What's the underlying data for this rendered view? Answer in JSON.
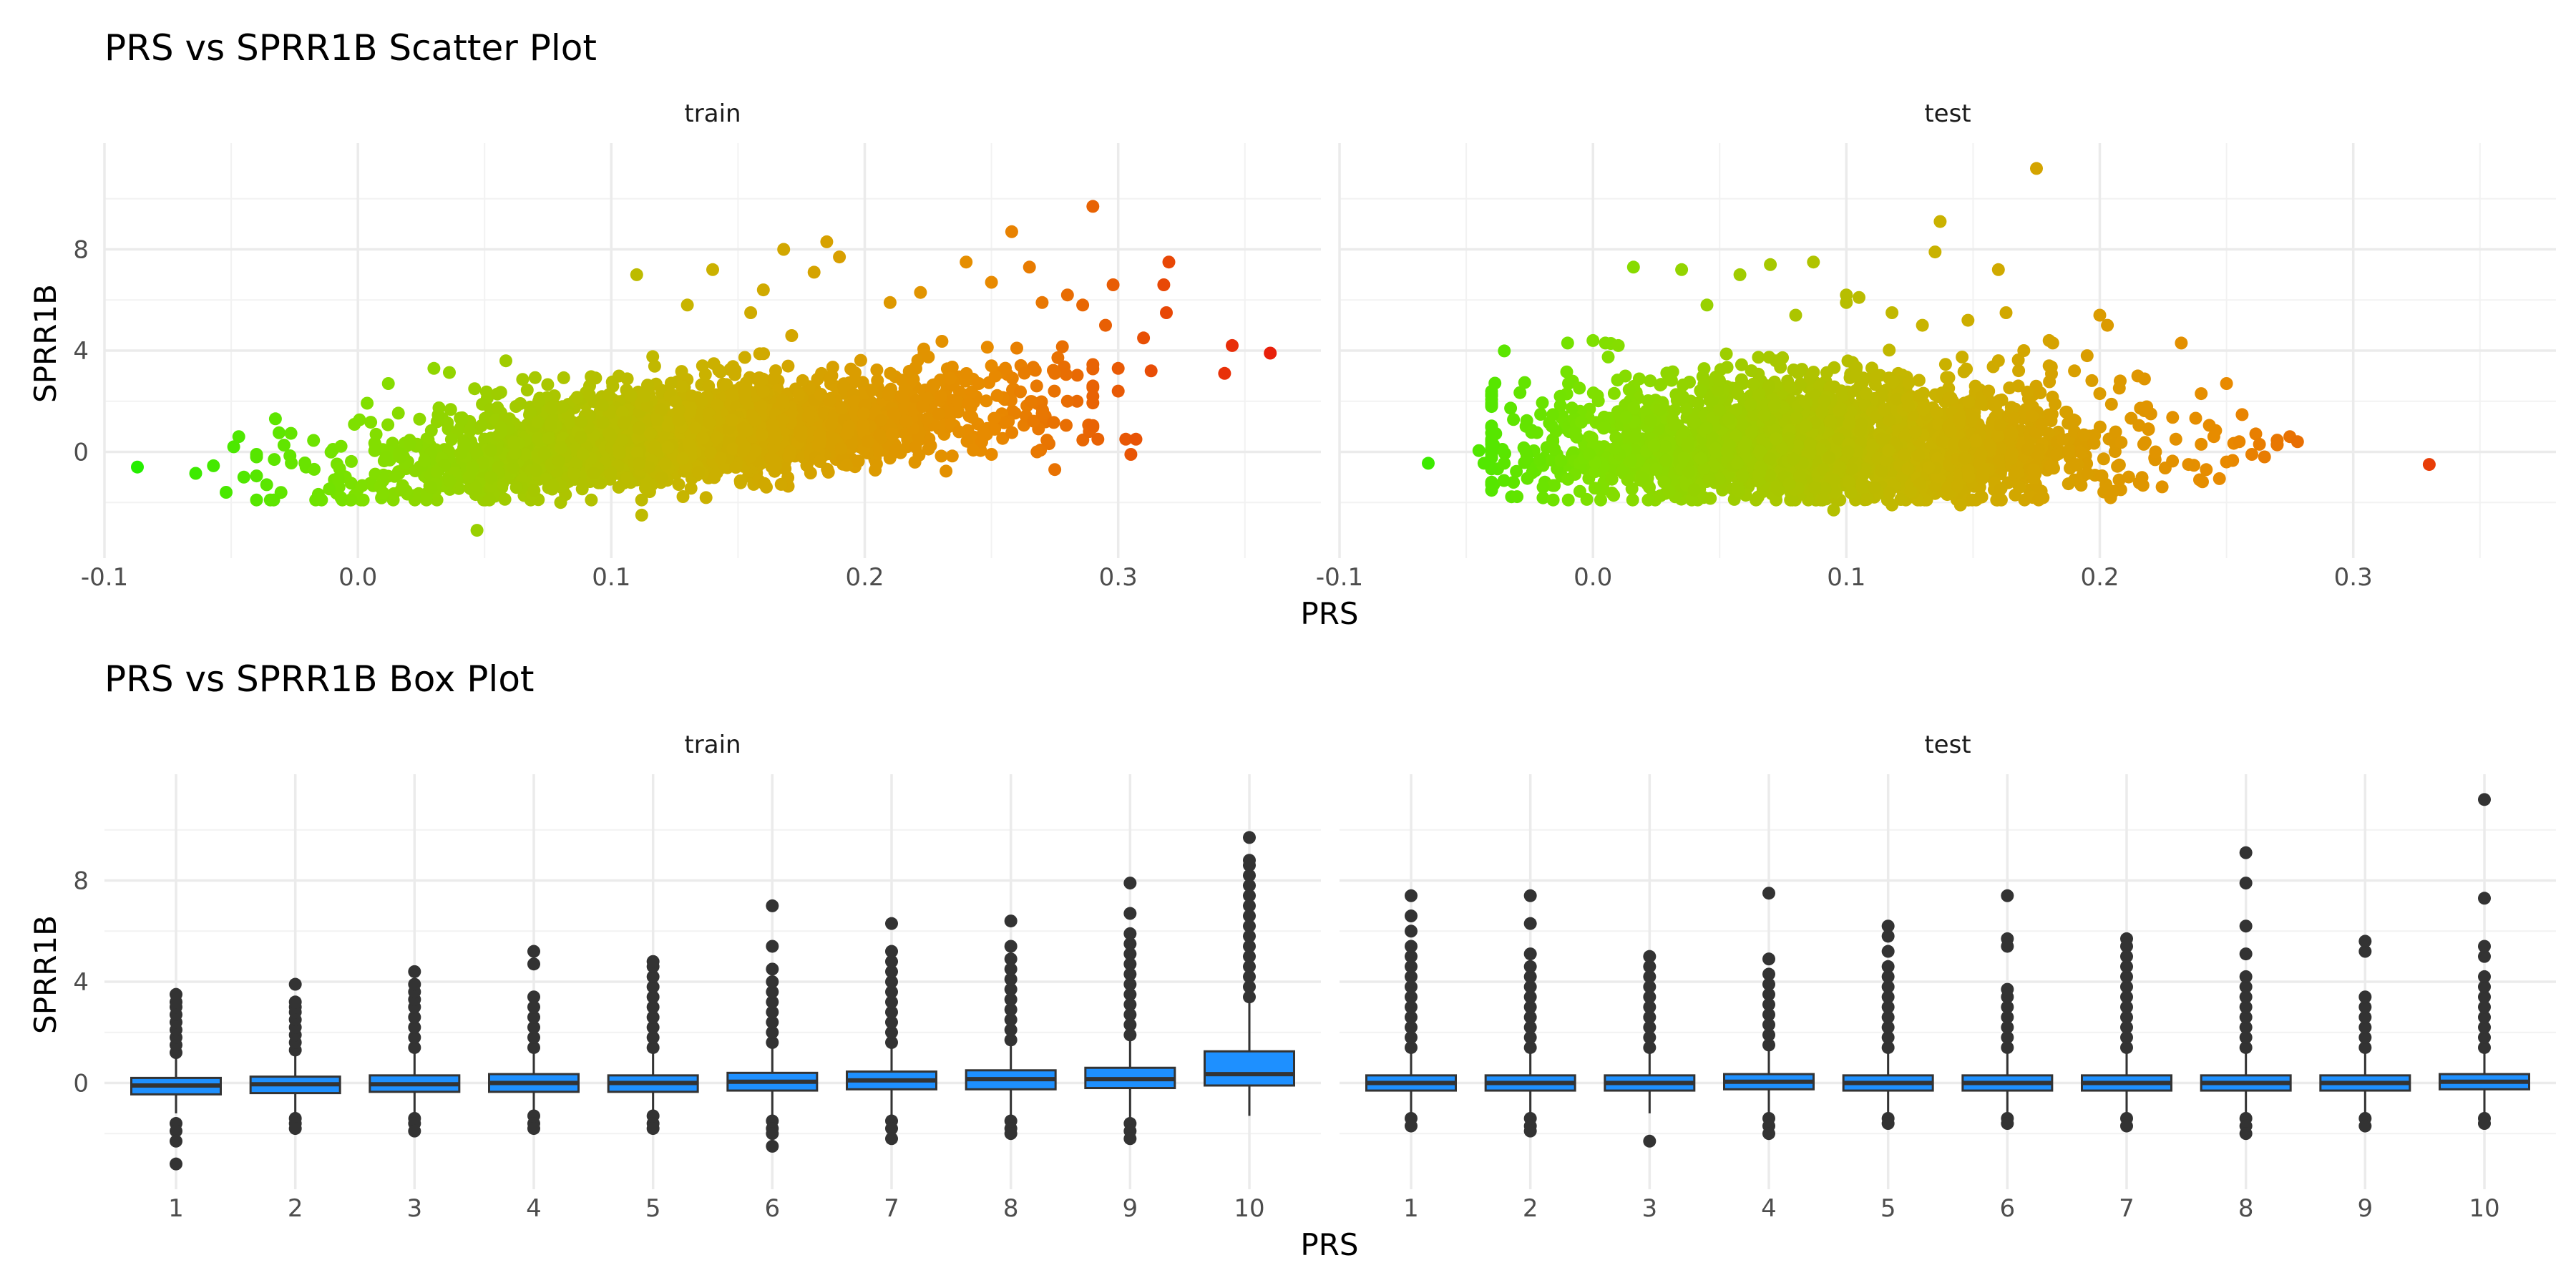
{
  "chart_data": [
    {
      "type": "scatter",
      "title": "PRS vs SPRR1B Scatter Plot",
      "xlabel": "PRS",
      "ylabel": "SPRR1B",
      "x_ticks": [
        -0.1,
        0.0,
        0.1,
        0.2,
        0.3
      ],
      "x_tick_labels": [
        "-0.1",
        "0.0",
        "0.1",
        "0.2",
        "0.3"
      ],
      "y_ticks": [
        0,
        4,
        8
      ],
      "y_tick_labels": [
        "0",
        "4",
        "8"
      ],
      "xlim": [
        -0.1,
        0.38
      ],
      "ylim": [
        -4.2,
        12.2
      ],
      "grid": true,
      "color_mapping": "PRS (green to red)",
      "colors": {
        "low": "#22ee00",
        "mid_low": "#7fe000",
        "mid": "#c8b400",
        "mid_high": "#e88a00",
        "high": "#e8200a"
      },
      "panels": [
        {
          "name": "train",
          "point_cloud": {
            "n": 2600,
            "x_mean": 0.13,
            "x_sd": 0.06,
            "slope": 10,
            "intercept": -0.9,
            "noise_sd": 0.75
          },
          "points": [
            [
              -0.087,
              -0.6
            ],
            [
              -0.064,
              -0.85
            ],
            [
              -0.057,
              -0.55
            ],
            [
              -0.052,
              -1.6
            ],
            [
              -0.049,
              0.2
            ],
            [
              -0.047,
              0.6
            ],
            [
              -0.045,
              -1.0
            ],
            [
              -0.04,
              -0.2
            ],
            [
              -0.036,
              -1.3
            ],
            [
              -0.033,
              -0.3
            ],
            [
              0.012,
              2.7
            ],
            [
              0.03,
              3.3
            ],
            [
              0.047,
              -3.1
            ],
            [
              0.08,
              -2.0
            ],
            [
              0.11,
              7.0
            ],
            [
              0.112,
              -2.5
            ],
            [
              0.13,
              5.8
            ],
            [
              0.14,
              7.2
            ],
            [
              0.155,
              5.5
            ],
            [
              0.16,
              6.4
            ],
            [
              0.168,
              8.0
            ],
            [
              0.18,
              7.1
            ],
            [
              0.185,
              8.3
            ],
            [
              0.19,
              7.7
            ],
            [
              0.21,
              5.9
            ],
            [
              0.222,
              6.3
            ],
            [
              0.24,
              7.5
            ],
            [
              0.25,
              6.7
            ],
            [
              0.258,
              8.7
            ],
            [
              0.265,
              7.3
            ],
            [
              0.27,
              5.9
            ],
            [
              0.275,
              3.1
            ],
            [
              0.28,
              6.2
            ],
            [
              0.286,
              5.8
            ],
            [
              0.29,
              9.7
            ],
            [
              0.292,
              0.5
            ],
            [
              0.295,
              5.0
            ],
            [
              0.298,
              6.6
            ],
            [
              0.3,
              3.3
            ],
            [
              0.3,
              2.4
            ],
            [
              0.303,
              0.5
            ],
            [
              0.305,
              -0.1
            ],
            [
              0.307,
              0.5
            ],
            [
              0.31,
              4.5
            ],
            [
              0.313,
              3.2
            ],
            [
              0.318,
              6.6
            ],
            [
              0.319,
              5.5
            ],
            [
              0.32,
              7.5
            ],
            [
              0.342,
              3.1
            ],
            [
              0.345,
              4.2
            ],
            [
              0.36,
              3.9
            ],
            [
              0.25,
              3.4
            ],
            [
              0.26,
              4.1
            ],
            [
              0.245,
              2.7
            ],
            [
              0.23,
              2.2
            ],
            [
              0.27,
              1.5
            ],
            [
              0.28,
              2.0
            ],
            [
              0.268,
              0.0
            ],
            [
              0.25,
              -0.1
            ],
            [
              0.275,
              -0.7
            ]
          ]
        },
        {
          "name": "test",
          "point_cloud": {
            "n": 2600,
            "x_mean": 0.09,
            "x_sd": 0.055,
            "slope": 0,
            "intercept": 0.1,
            "noise_sd": 0.95
          },
          "points": [
            [
              -0.065,
              -0.45
            ],
            [
              -0.045,
              0.05
            ],
            [
              -0.043,
              -0.45
            ],
            [
              -0.035,
              -0.45
            ],
            [
              -0.01,
              4.3
            ],
            [
              0.0,
              4.4
            ],
            [
              0.01,
              4.2
            ],
            [
              0.016,
              7.3
            ],
            [
              0.035,
              7.2
            ],
            [
              0.045,
              5.8
            ],
            [
              0.058,
              7.0
            ],
            [
              0.07,
              7.4
            ],
            [
              0.08,
              5.4
            ],
            [
              0.087,
              7.5
            ],
            [
              0.1,
              5.9
            ],
            [
              0.1,
              6.2
            ],
            [
              0.105,
              6.1
            ],
            [
              0.118,
              5.5
            ],
            [
              0.13,
              5.0
            ],
            [
              0.135,
              7.9
            ],
            [
              0.137,
              9.1
            ],
            [
              0.148,
              5.2
            ],
            [
              0.16,
              7.2
            ],
            [
              0.163,
              5.5
            ],
            [
              0.17,
              4.0
            ],
            [
              0.175,
              11.2
            ],
            [
              0.18,
              4.4
            ],
            [
              0.19,
              3.2
            ],
            [
              0.195,
              3.8
            ],
            [
              0.2,
              2.3
            ],
            [
              0.215,
              3.0
            ],
            [
              0.2,
              5.4
            ],
            [
              0.203,
              5.0
            ],
            [
              0.16,
              3.6
            ],
            [
              0.18,
              3.4
            ],
            [
              0.095,
              -2.3
            ],
            [
              0.118,
              -2.1
            ],
            [
              0.145,
              -2.1
            ],
            [
              0.04,
              -1.5
            ],
            [
              0.24,
              2.3
            ],
            [
              0.25,
              2.7
            ],
            [
              0.24,
              0.3
            ],
            [
              0.245,
              0.6
            ],
            [
              0.255,
              0.4
            ],
            [
              0.26,
              -0.1
            ],
            [
              0.263,
              0.3
            ],
            [
              0.27,
              0.3
            ],
            [
              0.275,
              0.6
            ],
            [
              0.278,
              0.4
            ],
            [
              0.265,
              -0.2
            ],
            [
              0.33,
              -0.5
            ],
            [
              0.235,
              -0.5
            ],
            [
              0.25,
              -0.4
            ],
            [
              0.222,
              0.0
            ],
            [
              0.23,
              0.5
            ]
          ]
        }
      ]
    },
    {
      "type": "box",
      "title": "PRS vs SPRR1B Box Plot",
      "xlabel": "PRS",
      "ylabel": "SPRR1B",
      "categories": [
        "1",
        "2",
        "3",
        "4",
        "5",
        "6",
        "7",
        "8",
        "9",
        "10"
      ],
      "y_ticks": [
        0,
        4,
        8
      ],
      "y_tick_labels": [
        "0",
        "4",
        "8"
      ],
      "ylim": [
        -4.2,
        12.2
      ],
      "grid": true,
      "colors": {
        "box_fill": "#1e90ff",
        "box_line": "#333333"
      },
      "panels": [
        {
          "name": "train",
          "boxes": [
            {
              "q1": -0.45,
              "median": -0.1,
              "q3": 0.2,
              "lower": -1.2,
              "upper": 1.0,
              "outliers": [
                -1.6,
                -1.9,
                -2.3,
                -3.2,
                1.2,
                1.5,
                1.8,
                2.1,
                2.4,
                2.7,
                3.0,
                3.2,
                3.5
              ]
            },
            {
              "q1": -0.4,
              "median": -0.05,
              "q3": 0.25,
              "lower": -1.2,
              "upper": 1.1,
              "outliers": [
                -1.4,
                -1.6,
                -1.8,
                1.3,
                1.6,
                1.9,
                2.2,
                2.5,
                2.8,
                3.0,
                3.2,
                3.9
              ]
            },
            {
              "q1": -0.35,
              "median": -0.05,
              "q3": 0.3,
              "lower": -1.2,
              "upper": 1.2,
              "outliers": [
                -1.4,
                -1.6,
                -1.9,
                1.4,
                1.8,
                2.2,
                2.6,
                3.0,
                3.3,
                3.6,
                3.9,
                4.4
              ]
            },
            {
              "q1": -0.35,
              "median": 0.0,
              "q3": 0.35,
              "lower": -1.2,
              "upper": 1.2,
              "outliers": [
                -1.3,
                -1.6,
                -1.8,
                1.4,
                1.8,
                2.2,
                2.6,
                3.0,
                3.4,
                4.7,
                5.2
              ]
            },
            {
              "q1": -0.35,
              "median": 0.0,
              "q3": 0.3,
              "lower": -1.2,
              "upper": 1.2,
              "outliers": [
                -1.3,
                -1.6,
                -1.8,
                1.4,
                1.8,
                2.2,
                2.6,
                3.0,
                3.4,
                3.8,
                4.2,
                4.6,
                4.8
              ]
            },
            {
              "q1": -0.3,
              "median": 0.05,
              "q3": 0.4,
              "lower": -1.3,
              "upper": 1.4,
              "outliers": [
                -1.5,
                -1.8,
                -2.0,
                -2.5,
                1.6,
                2.0,
                2.4,
                2.8,
                3.2,
                3.6,
                4.0,
                4.5,
                5.4,
                7.0
              ]
            },
            {
              "q1": -0.25,
              "median": 0.1,
              "q3": 0.45,
              "lower": -1.3,
              "upper": 1.4,
              "outliers": [
                -1.5,
                -1.8,
                -2.2,
                1.6,
                2.0,
                2.4,
                2.8,
                3.2,
                3.6,
                4.0,
                4.4,
                4.8,
                5.2,
                6.3
              ]
            },
            {
              "q1": -0.25,
              "median": 0.15,
              "q3": 0.5,
              "lower": -1.3,
              "upper": 1.5,
              "outliers": [
                -1.5,
                -1.8,
                -2.0,
                1.7,
                2.1,
                2.5,
                2.9,
                3.3,
                3.7,
                4.1,
                4.5,
                4.9,
                5.4,
                6.4
              ]
            },
            {
              "q1": -0.2,
              "median": 0.15,
              "q3": 0.6,
              "lower": -1.4,
              "upper": 1.7,
              "outliers": [
                -1.6,
                -1.9,
                -2.2,
                1.9,
                2.3,
                2.7,
                3.1,
                3.5,
                3.9,
                4.3,
                4.7,
                5.1,
                5.5,
                5.9,
                6.7,
                7.9
              ]
            },
            {
              "q1": -0.1,
              "median": 0.35,
              "q3": 1.25,
              "lower": -1.3,
              "upper": 3.2,
              "outliers": [
                3.4,
                3.8,
                4.2,
                4.6,
                5.0,
                5.4,
                5.8,
                6.2,
                6.6,
                7.0,
                7.4,
                7.8,
                8.2,
                8.6,
                8.8,
                9.7
              ]
            }
          ]
        },
        {
          "name": "test",
          "boxes": [
            {
              "q1": -0.3,
              "median": 0.0,
              "q3": 0.3,
              "lower": -1.2,
              "upper": 1.2,
              "outliers": [
                -1.4,
                -1.7,
                1.4,
                1.8,
                2.2,
                2.6,
                3.0,
                3.4,
                3.8,
                4.2,
                4.6,
                5.0,
                5.4,
                6.0,
                6.6,
                7.4
              ]
            },
            {
              "q1": -0.3,
              "median": 0.0,
              "q3": 0.3,
              "lower": -1.2,
              "upper": 1.2,
              "outliers": [
                -1.4,
                -1.7,
                -1.9,
                1.4,
                1.8,
                2.2,
                2.6,
                3.0,
                3.4,
                3.8,
                4.2,
                4.6,
                5.1,
                6.3,
                7.4
              ]
            },
            {
              "q1": -0.3,
              "median": 0.0,
              "q3": 0.3,
              "lower": -1.2,
              "upper": 1.2,
              "outliers": [
                -2.3,
                1.4,
                1.8,
                2.2,
                2.6,
                3.0,
                3.4,
                3.8,
                4.2,
                4.6,
                5.0
              ]
            },
            {
              "q1": -0.25,
              "median": 0.05,
              "q3": 0.35,
              "lower": -1.2,
              "upper": 1.3,
              "outliers": [
                -1.4,
                -1.7,
                -2.0,
                1.5,
                1.9,
                2.3,
                2.7,
                3.1,
                3.5,
                3.9,
                4.3,
                4.9,
                7.5
              ]
            },
            {
              "q1": -0.3,
              "median": 0.0,
              "q3": 0.3,
              "lower": -1.2,
              "upper": 1.2,
              "outliers": [
                -1.4,
                -1.6,
                1.4,
                1.8,
                2.2,
                2.6,
                3.0,
                3.4,
                3.8,
                4.2,
                4.6,
                5.2,
                5.8,
                6.2
              ]
            },
            {
              "q1": -0.3,
              "median": 0.0,
              "q3": 0.3,
              "lower": -1.2,
              "upper": 1.2,
              "outliers": [
                -1.4,
                -1.6,
                1.4,
                1.8,
                2.2,
                2.6,
                3.0,
                3.4,
                3.7,
                5.4,
                5.7,
                7.4
              ]
            },
            {
              "q1": -0.3,
              "median": 0.0,
              "q3": 0.3,
              "lower": -1.2,
              "upper": 1.2,
              "outliers": [
                -1.4,
                -1.7,
                1.4,
                1.8,
                2.2,
                2.6,
                3.0,
                3.4,
                3.8,
                4.2,
                4.6,
                5.0,
                5.4,
                5.7
              ]
            },
            {
              "q1": -0.3,
              "median": 0.0,
              "q3": 0.3,
              "lower": -1.2,
              "upper": 1.2,
              "outliers": [
                -1.4,
                -1.7,
                -2.0,
                1.4,
                1.8,
                2.2,
                2.6,
                3.0,
                3.4,
                3.8,
                4.2,
                5.1,
                6.2,
                7.9,
                9.1
              ]
            },
            {
              "q1": -0.3,
              "median": 0.0,
              "q3": 0.3,
              "lower": -1.2,
              "upper": 1.2,
              "outliers": [
                -1.4,
                -1.7,
                1.4,
                1.8,
                2.2,
                2.6,
                3.0,
                3.4,
                5.2,
                5.6
              ]
            },
            {
              "q1": -0.25,
              "median": 0.05,
              "q3": 0.35,
              "lower": -1.2,
              "upper": 1.2,
              "outliers": [
                -1.4,
                -1.6,
                1.4,
                1.8,
                2.2,
                2.6,
                3.0,
                3.4,
                3.8,
                4.2,
                5.0,
                5.4,
                7.3,
                11.2
              ]
            }
          ]
        }
      ]
    }
  ]
}
